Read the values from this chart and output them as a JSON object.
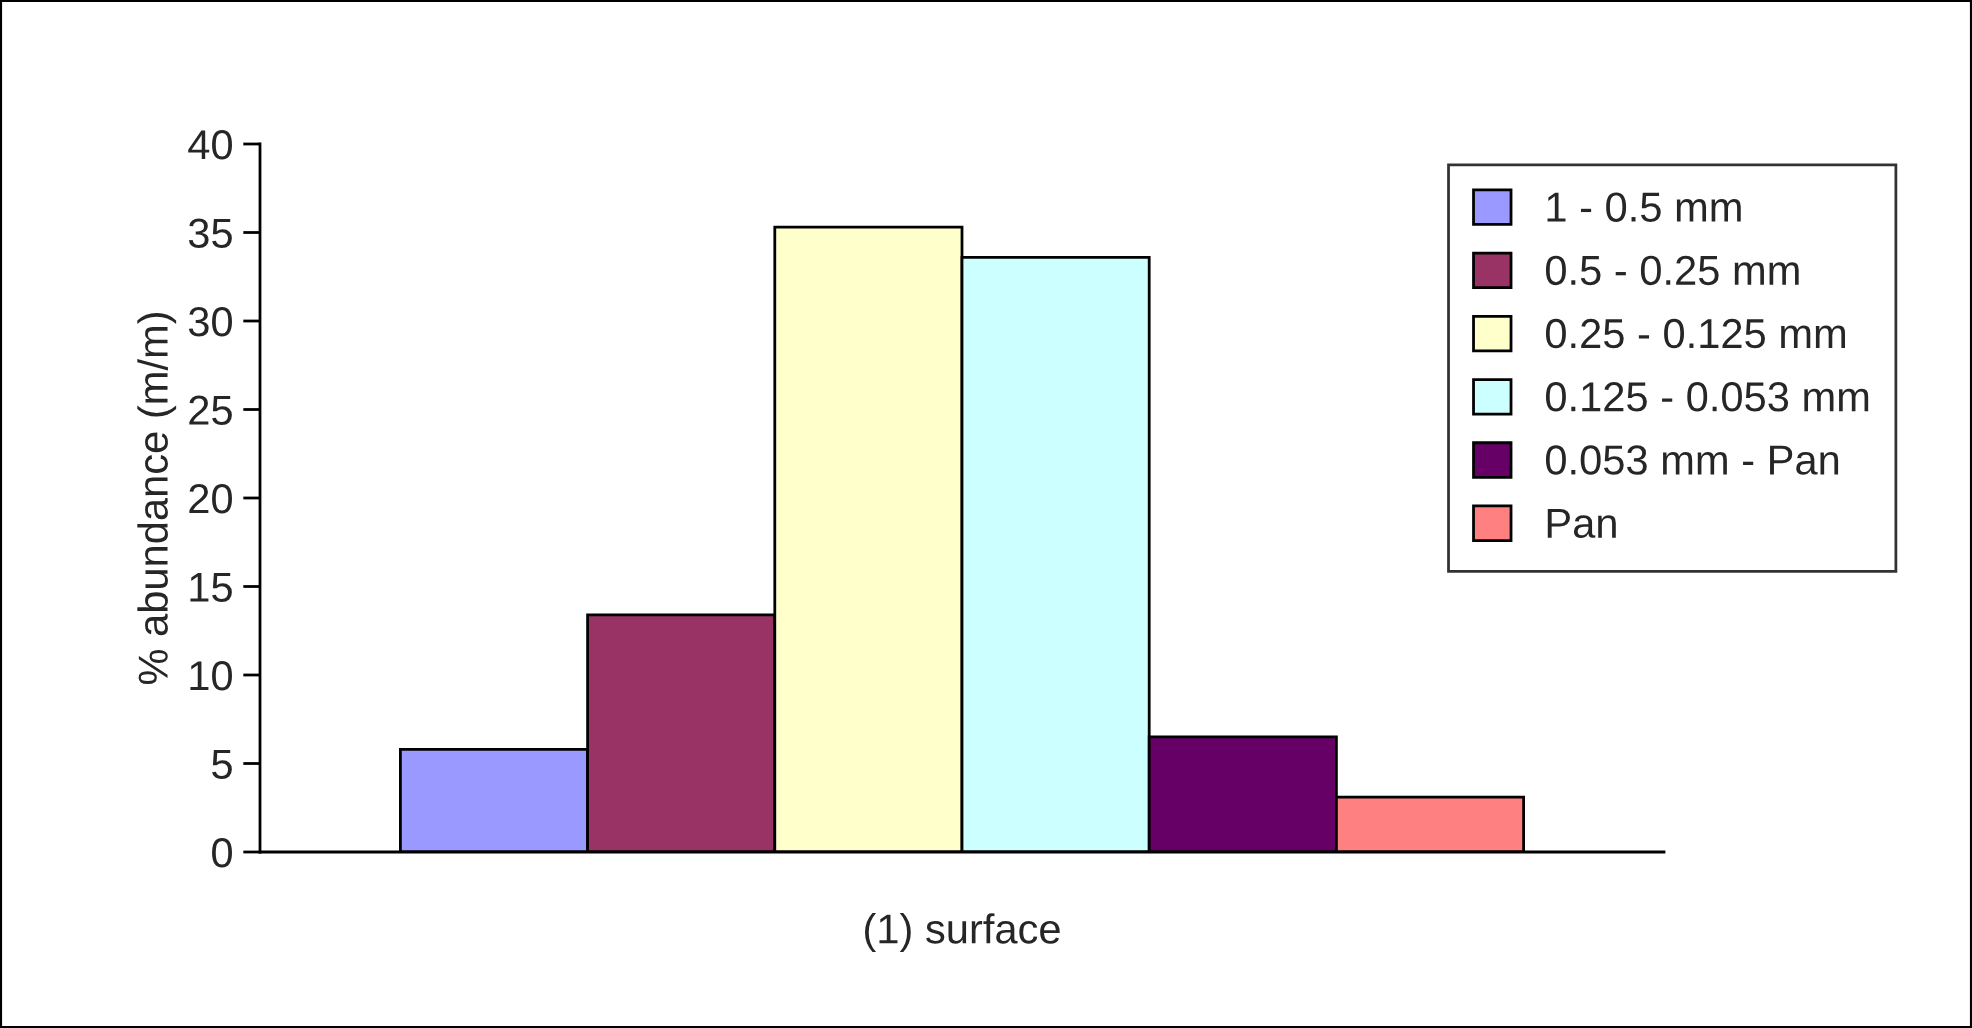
{
  "chart_data": {
    "type": "bar",
    "ylabel": "% abundance (m/m)",
    "categories": [
      "(1) surface"
    ],
    "series": [
      {
        "name": "1 - 0.5 mm",
        "color": "#9999ff",
        "values": [
          5.8
        ]
      },
      {
        "name": "0.5 - 0.25 mm",
        "color": "#993366",
        "values": [
          13.4
        ]
      },
      {
        "name": "0.25 - 0.125 mm",
        "color": "#ffffcc",
        "values": [
          35.3
        ]
      },
      {
        "name": "0.125 - 0.053 mm",
        "color": "#ccffff",
        "values": [
          33.6
        ]
      },
      {
        "name": "0.053 mm - Pan",
        "color": "#660066",
        "values": [
          6.5
        ]
      },
      {
        "name": "Pan",
        "color": "#ff8080",
        "values": [
          3.1
        ]
      }
    ],
    "ylim": [
      0,
      40
    ],
    "yticks": [
      0,
      5,
      10,
      15,
      20,
      25,
      30,
      35,
      40
    ],
    "grid": false,
    "legend": "top right"
  }
}
